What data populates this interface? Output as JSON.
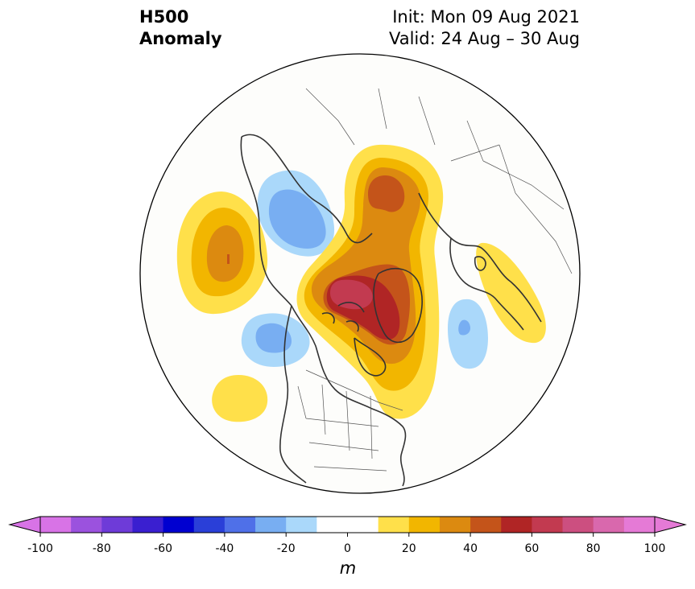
{
  "title": {
    "field_line1": "H500",
    "field_line2": "Anomaly",
    "init": "Init: Mon 09 Aug 2021",
    "valid": "Valid: 24 Aug – 30 Aug"
  },
  "colorbar": {
    "unit": "m",
    "tick_labels": [
      "-100",
      "-80",
      "-60",
      "-40",
      "-20",
      "0",
      "20",
      "40",
      "60",
      "80",
      "100"
    ],
    "levels": [
      -100,
      -90,
      -80,
      -70,
      -60,
      -50,
      -40,
      -30,
      -20,
      -10,
      10,
      20,
      30,
      40,
      50,
      60,
      70,
      80,
      90,
      100
    ],
    "colors": [
      "#d873e6",
      "#9b52de",
      "#6e3bd8",
      "#3a1fd0",
      "#0000d0",
      "#2a3fd8",
      "#4f70e8",
      "#78aef2",
      "#aad8fa",
      "#ffffff",
      "#ffe04a",
      "#f2b600",
      "#dc8a10",
      "#c4541a",
      "#b02525",
      "#c23a50",
      "#cc4f80",
      "#d968ad",
      "#e57ad6",
      "#e57ad6"
    ],
    "under_color": "#d873e6",
    "over_color": "#e57ad6"
  },
  "map": {
    "projection": "north-polar-stereographic",
    "background": "#fdfdfb",
    "coastline_color": "#333333"
  }
}
